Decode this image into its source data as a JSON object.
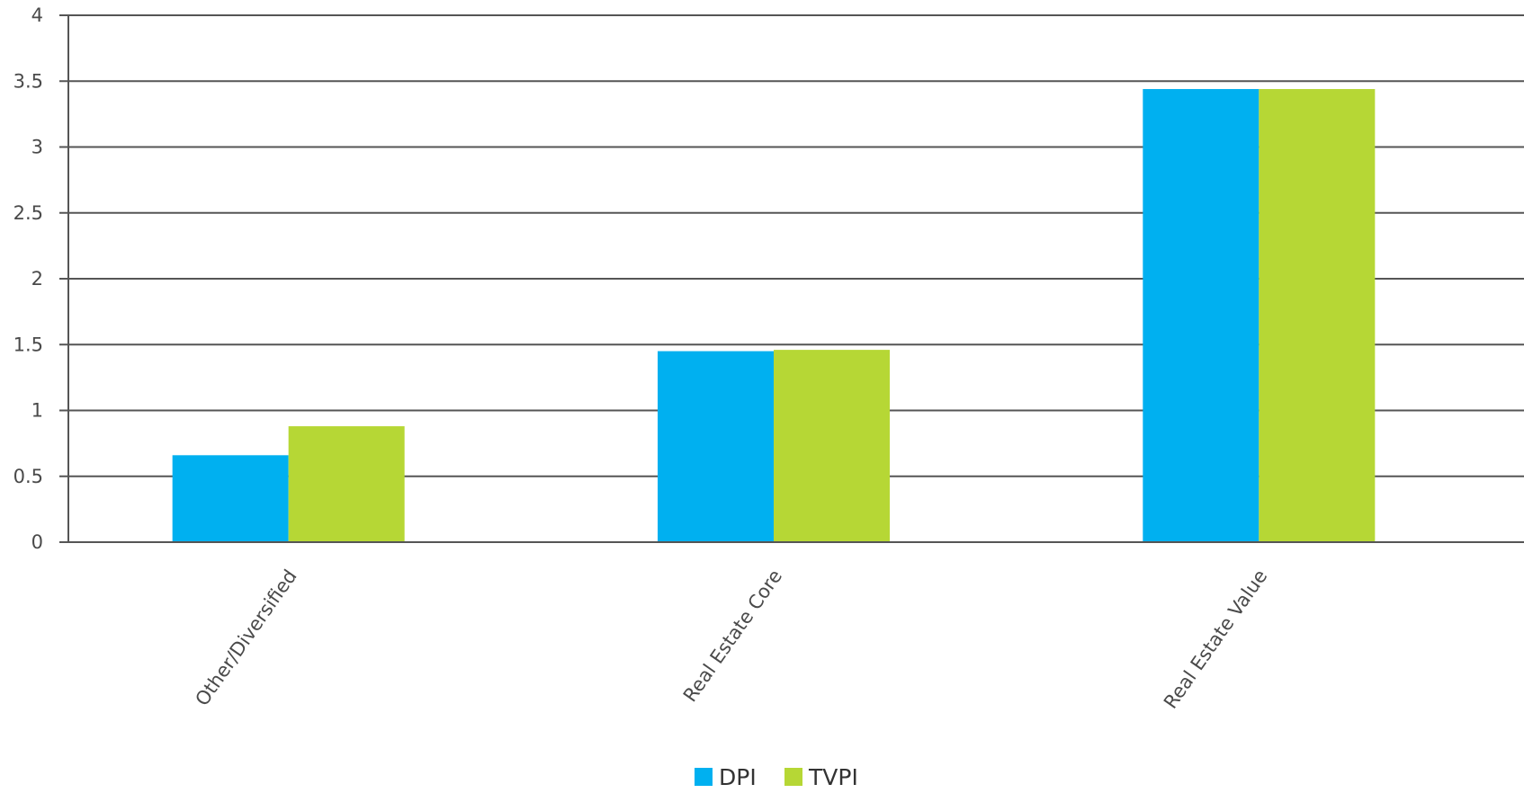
{
  "chart_data": {
    "type": "bar",
    "categories": [
      "Other/Diversified",
      "Real Estate Core",
      "Real Estate Value"
    ],
    "series": [
      {
        "name": "DPI",
        "color": "#00b0f0",
        "values": [
          0.66,
          1.45,
          3.44
        ]
      },
      {
        "name": "TVPI",
        "color": "#b6d735",
        "values": [
          0.88,
          1.46,
          3.44
        ]
      }
    ],
    "y_ticks": [
      "0",
      "0.5",
      "1",
      "1.5",
      "2",
      "2.5",
      "3",
      "3.5",
      "4"
    ],
    "ylim": [
      0,
      4
    ],
    "grid": true,
    "legend_position": "bottom-center"
  }
}
